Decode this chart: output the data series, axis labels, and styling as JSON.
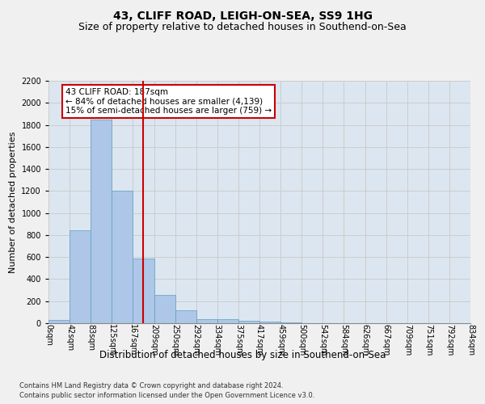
{
  "title": "43, CLIFF ROAD, LEIGH-ON-SEA, SS9 1HG",
  "subtitle": "Size of property relative to detached houses in Southend-on-Sea",
  "xlabel": "Distribution of detached houses by size in Southend-on-Sea",
  "ylabel": "Number of detached properties",
  "footnote1": "Contains HM Land Registry data © Crown copyright and database right 2024.",
  "footnote2": "Contains public sector information licensed under the Open Government Licence v3.0.",
  "bin_labels": [
    "0sqm",
    "42sqm",
    "83sqm",
    "125sqm",
    "167sqm",
    "209sqm",
    "250sqm",
    "292sqm",
    "334sqm",
    "375sqm",
    "417sqm",
    "459sqm",
    "500sqm",
    "542sqm",
    "584sqm",
    "626sqm",
    "667sqm",
    "709sqm",
    "751sqm",
    "792sqm",
    "834sqm"
  ],
  "bar_values": [
    30,
    840,
    1850,
    1200,
    590,
    255,
    120,
    40,
    35,
    25,
    15,
    5,
    0,
    0,
    0,
    0,
    0,
    0,
    0,
    0
  ],
  "bar_color": "#aec6e8",
  "bar_edge_color": "#5a9fc3",
  "vline_color": "#cc0000",
  "annotation_text": "43 CLIFF ROAD: 187sqm\n← 84% of detached houses are smaller (4,139)\n15% of semi-detached houses are larger (759) →",
  "annotation_box_color": "#ffffff",
  "annotation_box_edge": "#cc0000",
  "ylim": [
    0,
    2200
  ],
  "yticks": [
    0,
    200,
    400,
    600,
    800,
    1000,
    1200,
    1400,
    1600,
    1800,
    2000,
    2200
  ],
  "grid_color": "#cccccc",
  "bg_color": "#dce6f0",
  "fig_bg_color": "#f0f0f0",
  "title_fontsize": 10,
  "subtitle_fontsize": 9,
  "tick_fontsize": 7,
  "xlabel_fontsize": 8.5,
  "ylabel_fontsize": 8,
  "annotation_fontsize": 7.5,
  "footnote_fontsize": 6
}
